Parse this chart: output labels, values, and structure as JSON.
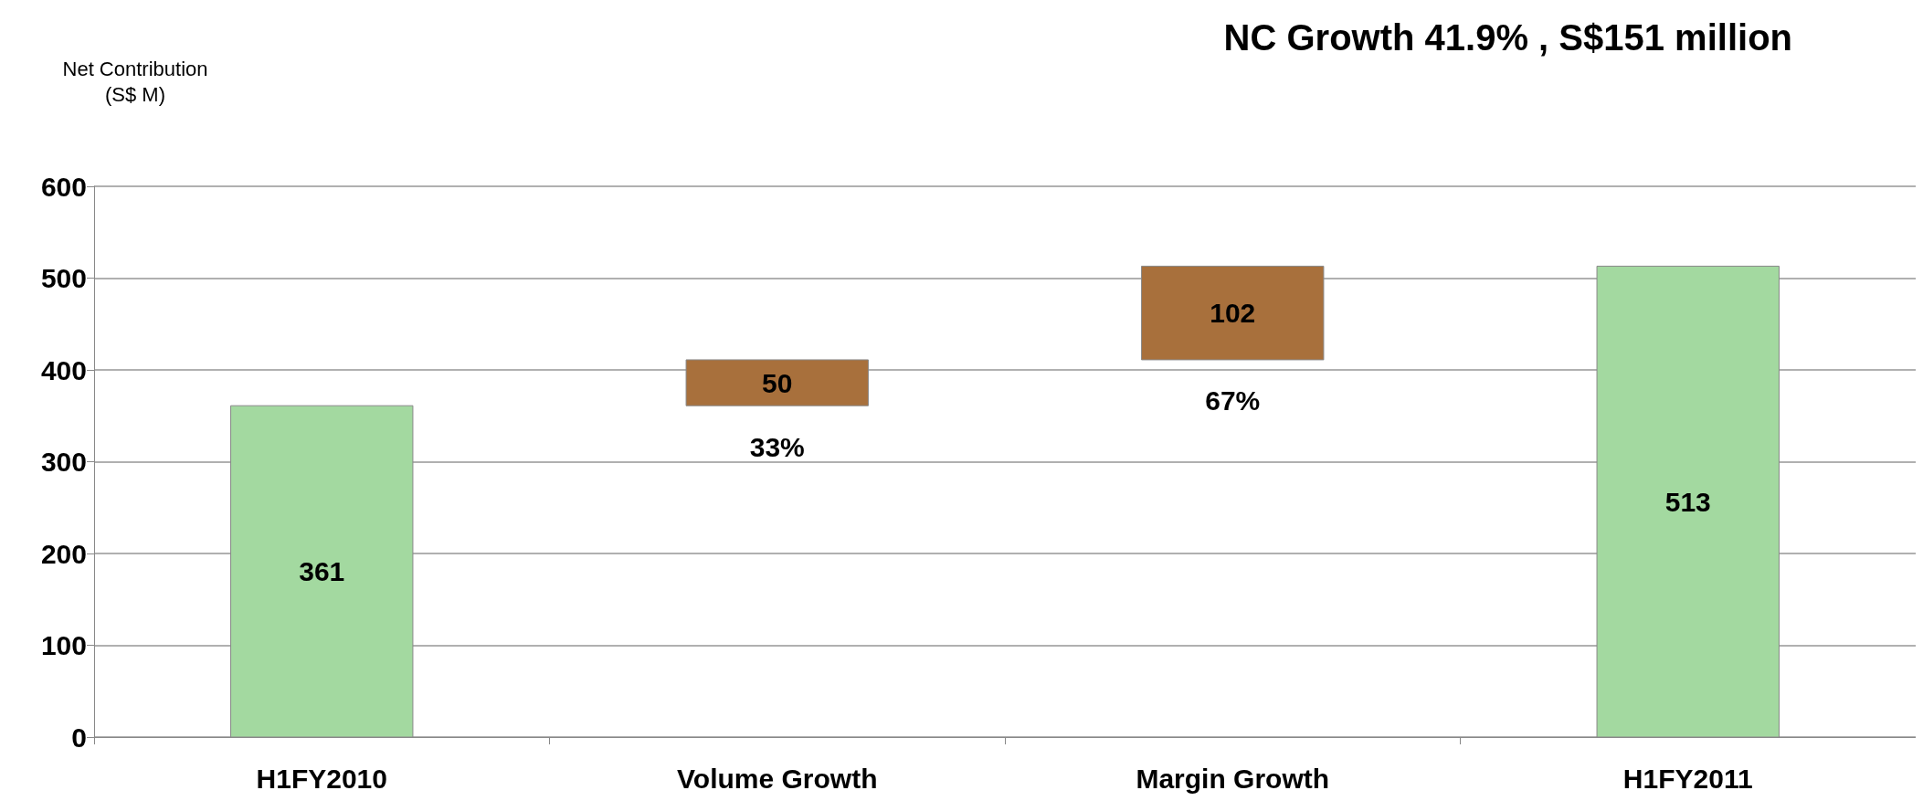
{
  "chart_data": {
    "type": "bar",
    "title": "NC Growth 41.9% , S$151 million",
    "ylabel": "Net Contribution\n(S$ M)",
    "categories": [
      "H1FY2010",
      "Volume Growth",
      "Margin Growth",
      "H1FY2011"
    ],
    "values": [
      361,
      50,
      102,
      513
    ],
    "base": [
      0,
      361,
      411,
      0
    ],
    "colors": [
      "#a3d9a0",
      "#a8703c",
      "#a8703c",
      "#a3d9a0"
    ],
    "data_labels": true,
    "annotations": [
      "33%",
      "67%"
    ],
    "ylim": [
      0,
      600
    ],
    "yticks": [
      0,
      100,
      200,
      300,
      400,
      500,
      600
    ],
    "grid": "y"
  }
}
